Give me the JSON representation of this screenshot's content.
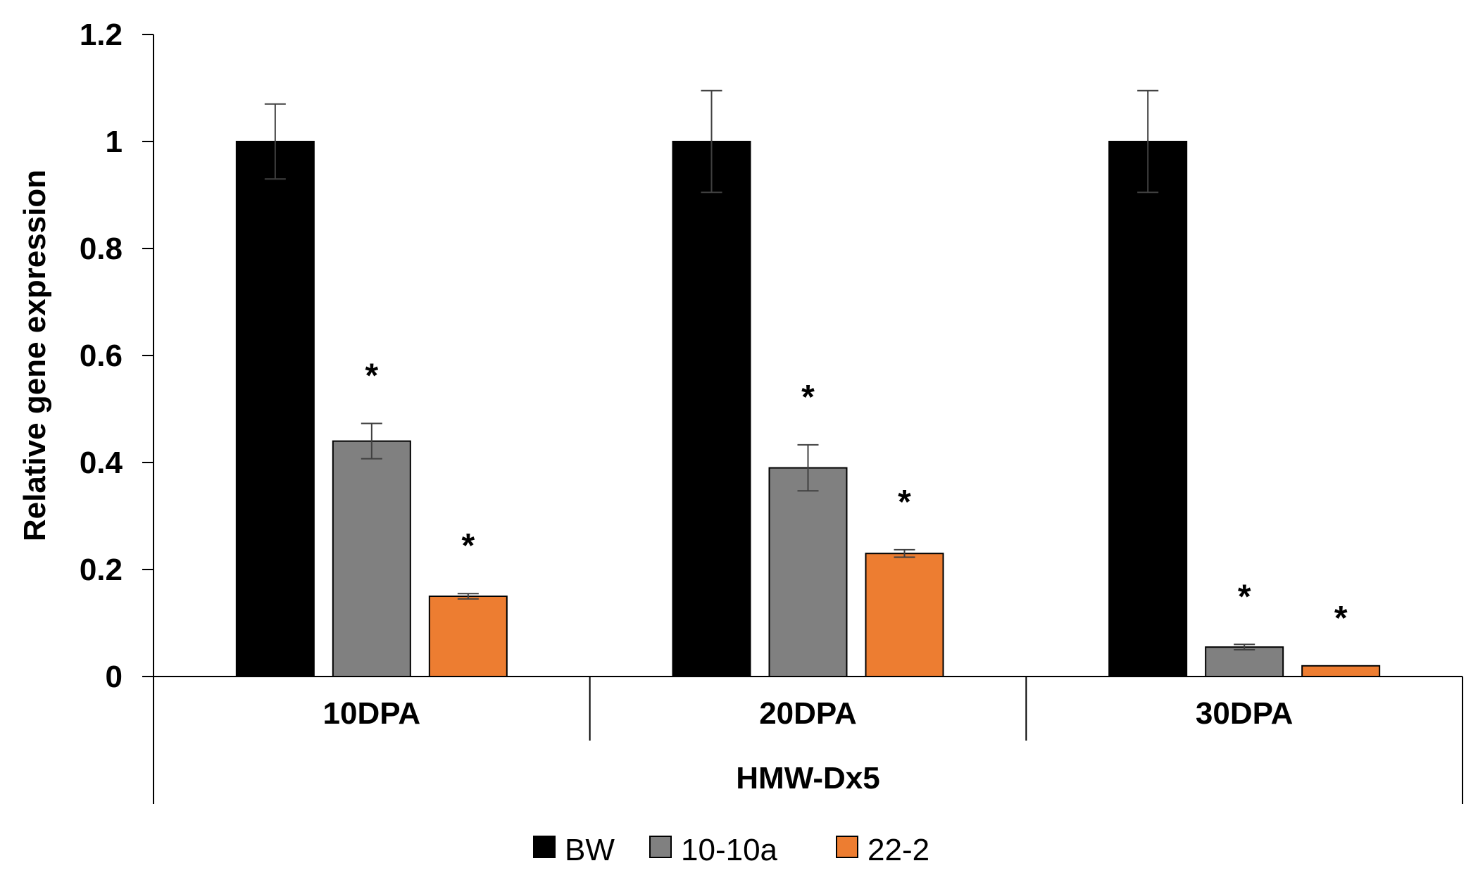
{
  "chart_data": {
    "type": "bar",
    "title": "",
    "ylabel": "Relative gene expression",
    "xlabel": "HMW-Dx5",
    "group_label": "HMW-Dx5",
    "categories": [
      "10DPA",
      "20DPA",
      "30DPA"
    ],
    "ylim": [
      0,
      1.2
    ],
    "yticks": [
      0,
      0.2,
      0.4,
      0.6,
      0.8,
      1,
      1.2
    ],
    "ytick_labels": [
      "0",
      "0.2",
      "0.4",
      "0.6",
      "0.8",
      "1",
      "1.2"
    ],
    "grid": false,
    "legend_position": "bottom",
    "significance_marker": "*",
    "series": [
      {
        "name": "BW",
        "color": "#000000",
        "values": [
          1.0,
          1.0,
          1.0
        ],
        "errors": [
          0.07,
          0.095,
          0.095
        ],
        "significant": [
          false,
          false,
          false
        ]
      },
      {
        "name": "10-10a",
        "color": "#808080",
        "values": [
          0.44,
          0.39,
          0.055
        ],
        "errors": [
          0.033,
          0.043,
          0.005
        ],
        "significant": [
          true,
          true,
          true
        ]
      },
      {
        "name": "22-2",
        "color": "#ED7D31",
        "values": [
          0.15,
          0.23,
          0.02
        ],
        "errors": [
          0.005,
          0.007,
          0.0
        ],
        "significant": [
          true,
          true,
          true
        ]
      }
    ]
  }
}
